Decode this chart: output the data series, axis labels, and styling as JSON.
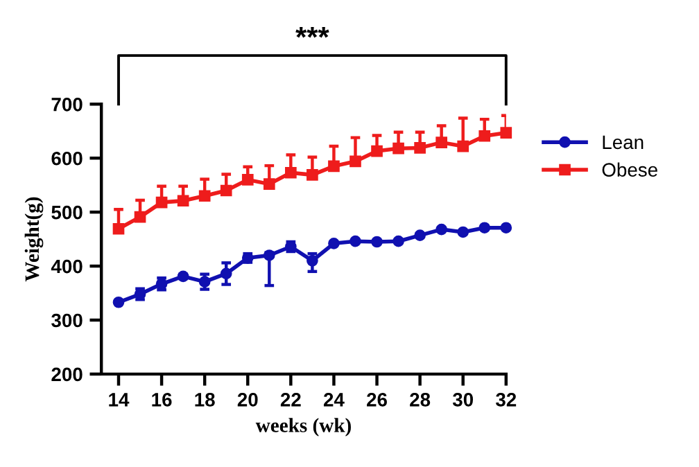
{
  "chart_data": {
    "type": "line",
    "xlabel": "weeks (wk)",
    "ylabel": "Weight(g)",
    "x": [
      14,
      15,
      16,
      17,
      18,
      19,
      20,
      21,
      22,
      23,
      24,
      25,
      26,
      27,
      28,
      29,
      30,
      31,
      32
    ],
    "xlim": [
      13.2,
      32
    ],
    "xticks": [
      14,
      16,
      18,
      20,
      22,
      24,
      26,
      28,
      30,
      32
    ],
    "ylim": [
      200,
      700
    ],
    "yticks": [
      200,
      300,
      400,
      500,
      600,
      700
    ],
    "grid": false,
    "legend": "right",
    "line_style": "solid",
    "annotations": [
      "***"
    ],
    "series": [
      {
        "name": "Lean",
        "color": "#1010b0",
        "marker": "circle",
        "values": [
          333,
          348,
          367,
          381,
          371,
          386,
          415,
          420,
          436,
          410,
          442,
          446,
          445,
          446,
          457,
          468,
          463,
          471,
          471
        ],
        "errors": [
          3,
          10,
          11,
          4,
          14,
          20,
          8,
          [
            364,
            425
          ],
          9,
          [
            390,
            423
          ],
          3,
          3,
          3,
          3,
          3,
          3,
          3,
          3,
          3
        ]
      },
      {
        "name": "Obese",
        "color": "#ee1c1c",
        "marker": "square",
        "values": [
          469,
          491,
          518,
          521,
          530,
          540,
          560,
          552,
          573,
          569,
          585,
          594,
          613,
          618,
          619,
          629,
          622,
          641,
          647
        ],
        "errors": [
          [
            469,
            505
          ],
          [
            491,
            522
          ],
          [
            518,
            548
          ],
          [
            521,
            548
          ],
          [
            530,
            561
          ],
          [
            540,
            570
          ],
          [
            560,
            584
          ],
          [
            552,
            586
          ],
          [
            573,
            606
          ],
          [
            569,
            602
          ],
          [
            585,
            622
          ],
          [
            594,
            638
          ],
          [
            613,
            642
          ],
          [
            618,
            648
          ],
          [
            619,
            648
          ],
          [
            629,
            660
          ],
          [
            622,
            674
          ],
          [
            641,
            672
          ],
          [
            647,
            679
          ]
        ]
      }
    ]
  }
}
